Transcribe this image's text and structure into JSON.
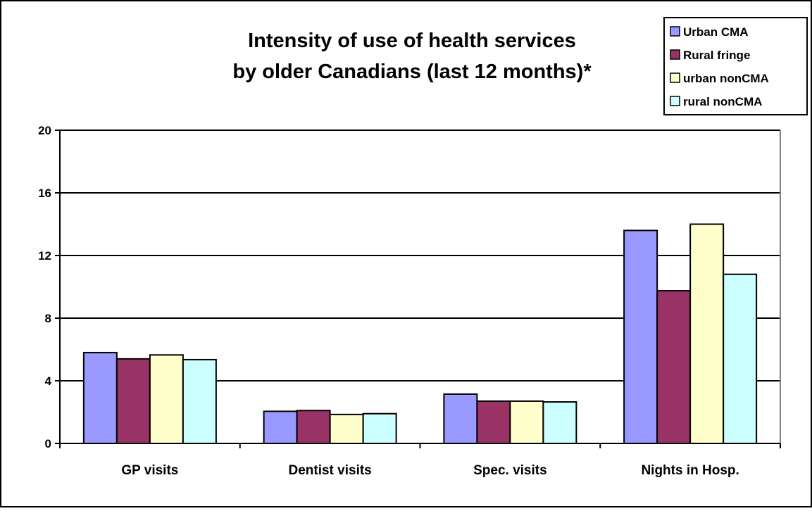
{
  "chart_data": {
    "type": "bar",
    "title_lines": [
      "Intensity of use of health services",
      "by older Canadians (last 12 months)*"
    ],
    "categories": [
      "GP visits",
      "Dentist visits",
      "Spec. visits",
      "Nights in Hosp."
    ],
    "series": [
      {
        "name": "Urban CMA",
        "color": "#9999ff",
        "values": [
          5.8,
          2.05,
          3.15,
          13.6
        ]
      },
      {
        "name": "Rural fringe",
        "color": "#993366",
        "values": [
          5.4,
          2.1,
          2.7,
          9.75
        ]
      },
      {
        "name": "urban nonCMA",
        "color": "#ffffcc",
        "values": [
          5.65,
          1.85,
          2.7,
          14.0
        ]
      },
      {
        "name": "rural nonCMA",
        "color": "#ccffff",
        "values": [
          5.35,
          1.9,
          2.65,
          10.8
        ]
      }
    ],
    "ylim": [
      0,
      20
    ],
    "yticks": [
      "0",
      "4",
      "8",
      "12",
      "16",
      "20"
    ],
    "grid": true,
    "legend_position": "top-right"
  }
}
